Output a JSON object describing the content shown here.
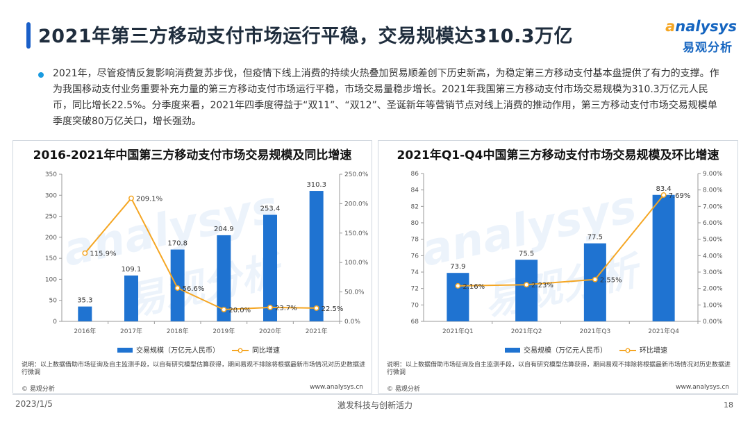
{
  "header": {
    "title": "2021年第三方移动支付市场运行平稳，交易规模达310.3万亿",
    "logo_en_a": "a",
    "logo_en_rest": "nalysys",
    "logo_cn": "易观分析"
  },
  "intro": {
    "text": "2021年，尽管疫情反复影响消费复苏步伐，但疫情下线上消费的持续火热叠加贸易顺差创下历史新高，为稳定第三方移动支付基本盘提供了有力的支撑。作为我国移动支付业务重要补充力量的第三方移动支付市场运行平稳，市场交易量稳步增长。2021年我国第三方移动支付市场交易规模为310.3万亿元人民币，同比增长22.5%。分季度来看，2021年四季度得益于“双11”、“双12”、圣诞新年等营销节点对线上消费的推动作用，第三方移动支付市场交易规模单季度突破80万亿关口，增长强劲。"
  },
  "colors": {
    "bar": "#1f73d1",
    "line": "#f5a623",
    "accent": "#1a5fc8"
  },
  "watermark": {
    "en": "analysys",
    "cn": "易观分析"
  },
  "left_panel": {
    "note": "说明：以上数据借助市场征询及自主监测手段，以自有研究模型估算获得，期间易观不排除将根据最新市场情况对历史数据进行微调",
    "footer_left": "© 易观分析",
    "footer_right": "www.analysys.cn"
  },
  "right_panel": {
    "note": "说明：以上数据借助市场征询及自主监测手段，以自有研究模型估算获得，期间易观不排除将根据最新市场情况对历史数据进行微调",
    "footer_left": "© 易观分析",
    "footer_right": "www.analysys.cn"
  },
  "chart_data": [
    {
      "type": "bar",
      "title": "2016-2021年中国第三方移动支付市场交易规模及同比增速",
      "categories": [
        "2016年",
        "2017年",
        "2018年",
        "2019年",
        "2020年",
        "2021年"
      ],
      "series": [
        {
          "name": "交易规模（万亿元人民币）",
          "type": "bar",
          "axis": "left",
          "values": [
            35.3,
            109.1,
            170.8,
            204.9,
            253.4,
            310.3
          ],
          "labels": [
            "35.3",
            "109.1",
            "170.8",
            "204.9",
            "253.4",
            "310.3"
          ]
        },
        {
          "name": "同比增速",
          "type": "line",
          "axis": "right",
          "values": [
            115.9,
            209.1,
            56.6,
            20.0,
            23.7,
            22.5
          ],
          "labels": [
            "115.9%",
            "209.1%",
            "56.6%",
            "20.0%",
            "23.7%",
            "22.5%"
          ]
        }
      ],
      "ylim": [
        0,
        350
      ],
      "y_ticks": [
        "0",
        "50",
        "100",
        "150",
        "200",
        "250",
        "300",
        "350"
      ],
      "y2lim": [
        0,
        250
      ],
      "y2_ticks": [
        "0.0%",
        "50.0%",
        "100.0%",
        "150.0%",
        "200.0%",
        "250.0%"
      ],
      "legend": "bottom",
      "grid": false
    },
    {
      "type": "bar",
      "title": "2021年Q1-Q4中国第三方移动支付市场交易规模及环比增速",
      "categories": [
        "2021年Q1",
        "2021年Q2",
        "2021年Q3",
        "2021年Q4"
      ],
      "series": [
        {
          "name": "交易规模（万亿元人民币）",
          "type": "bar",
          "axis": "left",
          "values": [
            73.9,
            75.5,
            77.5,
            83.4
          ],
          "labels": [
            "73.9",
            "75.5",
            "77.5",
            "83.4"
          ]
        },
        {
          "name": "环比增速",
          "type": "line",
          "axis": "right",
          "values": [
            2.16,
            2.23,
            2.55,
            7.69
          ],
          "labels": [
            "2.16%",
            "2.23%",
            "2.55%",
            "7.69%"
          ]
        }
      ],
      "ylim": [
        68,
        86
      ],
      "y_ticks": [
        "68",
        "70",
        "72",
        "74",
        "76",
        "78",
        "80",
        "82",
        "84",
        "86"
      ],
      "y2lim": [
        0,
        9
      ],
      "y2_ticks": [
        "0.00%",
        "1.00%",
        "2.00%",
        "3.00%",
        "4.00%",
        "5.00%",
        "6.00%",
        "7.00%",
        "8.00%",
        "9.00%"
      ],
      "legend": "bottom",
      "grid": false
    }
  ],
  "footer": {
    "date": "2023/1/5",
    "slogan": "激发科技与创新活力",
    "page": "18"
  }
}
